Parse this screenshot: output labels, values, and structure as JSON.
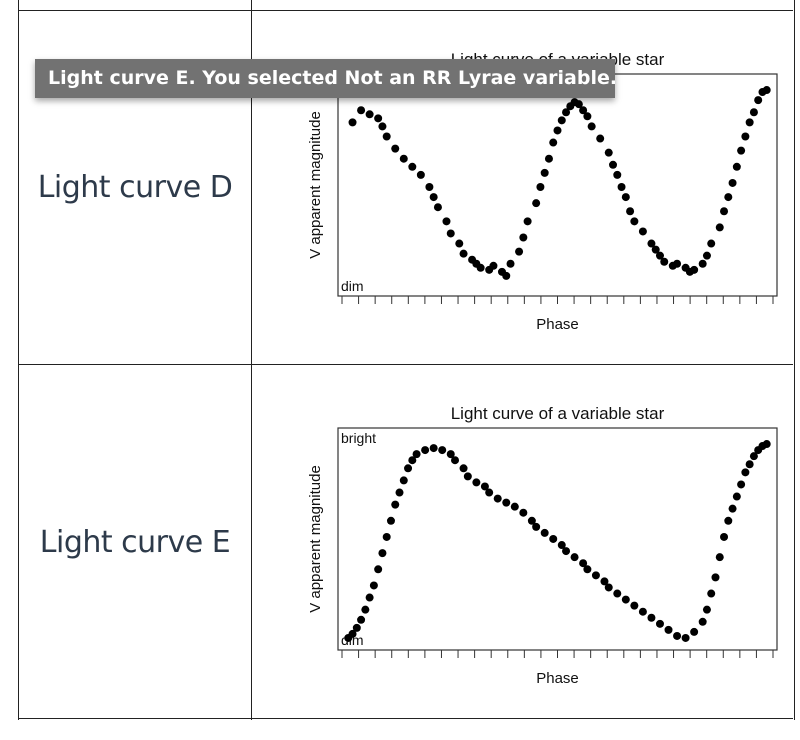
{
  "tooltip": {
    "text": "Light curve E. You selected Not an RR Lyrae variable."
  },
  "rows": [
    {
      "label": "Light curve D",
      "chart_data": {
        "type": "scatter",
        "title": "Light curve of a variable star",
        "xlabel": "Phase",
        "ylabel": "V apparent magnitude",
        "top_label": "",
        "bottom_label": "dim",
        "xlim": [
          0,
          1
        ],
        "ylim": [
          0,
          1
        ],
        "grid": false,
        "x": [
          0.02,
          0.04,
          0.06,
          0.08,
          0.09,
          0.1,
          0.12,
          0.14,
          0.16,
          0.18,
          0.2,
          0.21,
          0.22,
          0.24,
          0.25,
          0.27,
          0.28,
          0.3,
          0.31,
          0.32,
          0.34,
          0.35,
          0.37,
          0.38,
          0.39,
          0.41,
          0.42,
          0.43,
          0.45,
          0.46,
          0.47,
          0.48,
          0.49,
          0.5,
          0.51,
          0.52,
          0.53,
          0.54,
          0.55,
          0.56,
          0.57,
          0.58,
          0.6,
          0.62,
          0.63,
          0.64,
          0.65,
          0.66,
          0.67,
          0.68,
          0.7,
          0.72,
          0.73,
          0.74,
          0.75,
          0.77,
          0.78,
          0.8,
          0.81,
          0.82,
          0.84,
          0.85,
          0.86,
          0.88,
          0.89,
          0.9,
          0.91,
          0.92,
          0.93,
          0.94,
          0.95,
          0.96,
          0.97,
          0.98,
          0.99
        ],
        "y": [
          0.82,
          0.88,
          0.86,
          0.84,
          0.8,
          0.75,
          0.69,
          0.64,
          0.6,
          0.56,
          0.5,
          0.45,
          0.4,
          0.33,
          0.27,
          0.22,
          0.17,
          0.14,
          0.12,
          0.1,
          0.09,
          0.11,
          0.08,
          0.06,
          0.12,
          0.18,
          0.25,
          0.33,
          0.42,
          0.5,
          0.57,
          0.64,
          0.72,
          0.78,
          0.83,
          0.87,
          0.9,
          0.92,
          0.91,
          0.88,
          0.85,
          0.8,
          0.74,
          0.67,
          0.61,
          0.56,
          0.5,
          0.45,
          0.38,
          0.33,
          0.28,
          0.22,
          0.19,
          0.16,
          0.13,
          0.11,
          0.12,
          0.1,
          0.08,
          0.09,
          0.12,
          0.16,
          0.22,
          0.3,
          0.38,
          0.45,
          0.52,
          0.6,
          0.68,
          0.75,
          0.82,
          0.87,
          0.93,
          0.97,
          0.98
        ]
      }
    },
    {
      "label": "Light curve E",
      "chart_data": {
        "type": "scatter",
        "title": "Light curve of a variable star",
        "xlabel": "Phase",
        "ylabel": "V apparent magnitude",
        "top_label": "bright",
        "bottom_label": "dim",
        "xlim": [
          0,
          1
        ],
        "ylim": [
          0,
          1
        ],
        "grid": false,
        "x": [
          0.01,
          0.02,
          0.03,
          0.04,
          0.05,
          0.06,
          0.07,
          0.08,
          0.09,
          0.1,
          0.11,
          0.12,
          0.13,
          0.14,
          0.15,
          0.16,
          0.17,
          0.19,
          0.21,
          0.23,
          0.25,
          0.26,
          0.28,
          0.29,
          0.31,
          0.33,
          0.34,
          0.36,
          0.38,
          0.4,
          0.42,
          0.44,
          0.45,
          0.47,
          0.49,
          0.51,
          0.52,
          0.54,
          0.56,
          0.57,
          0.59,
          0.61,
          0.62,
          0.64,
          0.66,
          0.68,
          0.7,
          0.72,
          0.74,
          0.76,
          0.78,
          0.8,
          0.82,
          0.84,
          0.85,
          0.86,
          0.87,
          0.88,
          0.89,
          0.9,
          0.91,
          0.92,
          0.93,
          0.94,
          0.95,
          0.96,
          0.97,
          0.98,
          0.99
        ],
        "y": [
          0.02,
          0.04,
          0.07,
          0.11,
          0.16,
          0.22,
          0.28,
          0.36,
          0.44,
          0.52,
          0.6,
          0.68,
          0.74,
          0.8,
          0.86,
          0.9,
          0.93,
          0.95,
          0.96,
          0.95,
          0.93,
          0.9,
          0.86,
          0.82,
          0.79,
          0.77,
          0.74,
          0.71,
          0.69,
          0.67,
          0.64,
          0.6,
          0.57,
          0.54,
          0.51,
          0.48,
          0.45,
          0.42,
          0.39,
          0.36,
          0.33,
          0.3,
          0.27,
          0.24,
          0.21,
          0.18,
          0.15,
          0.12,
          0.09,
          0.06,
          0.03,
          0.02,
          0.05,
          0.1,
          0.16,
          0.24,
          0.32,
          0.42,
          0.52,
          0.6,
          0.66,
          0.72,
          0.78,
          0.84,
          0.88,
          0.92,
          0.95,
          0.97,
          0.98
        ]
      }
    }
  ]
}
